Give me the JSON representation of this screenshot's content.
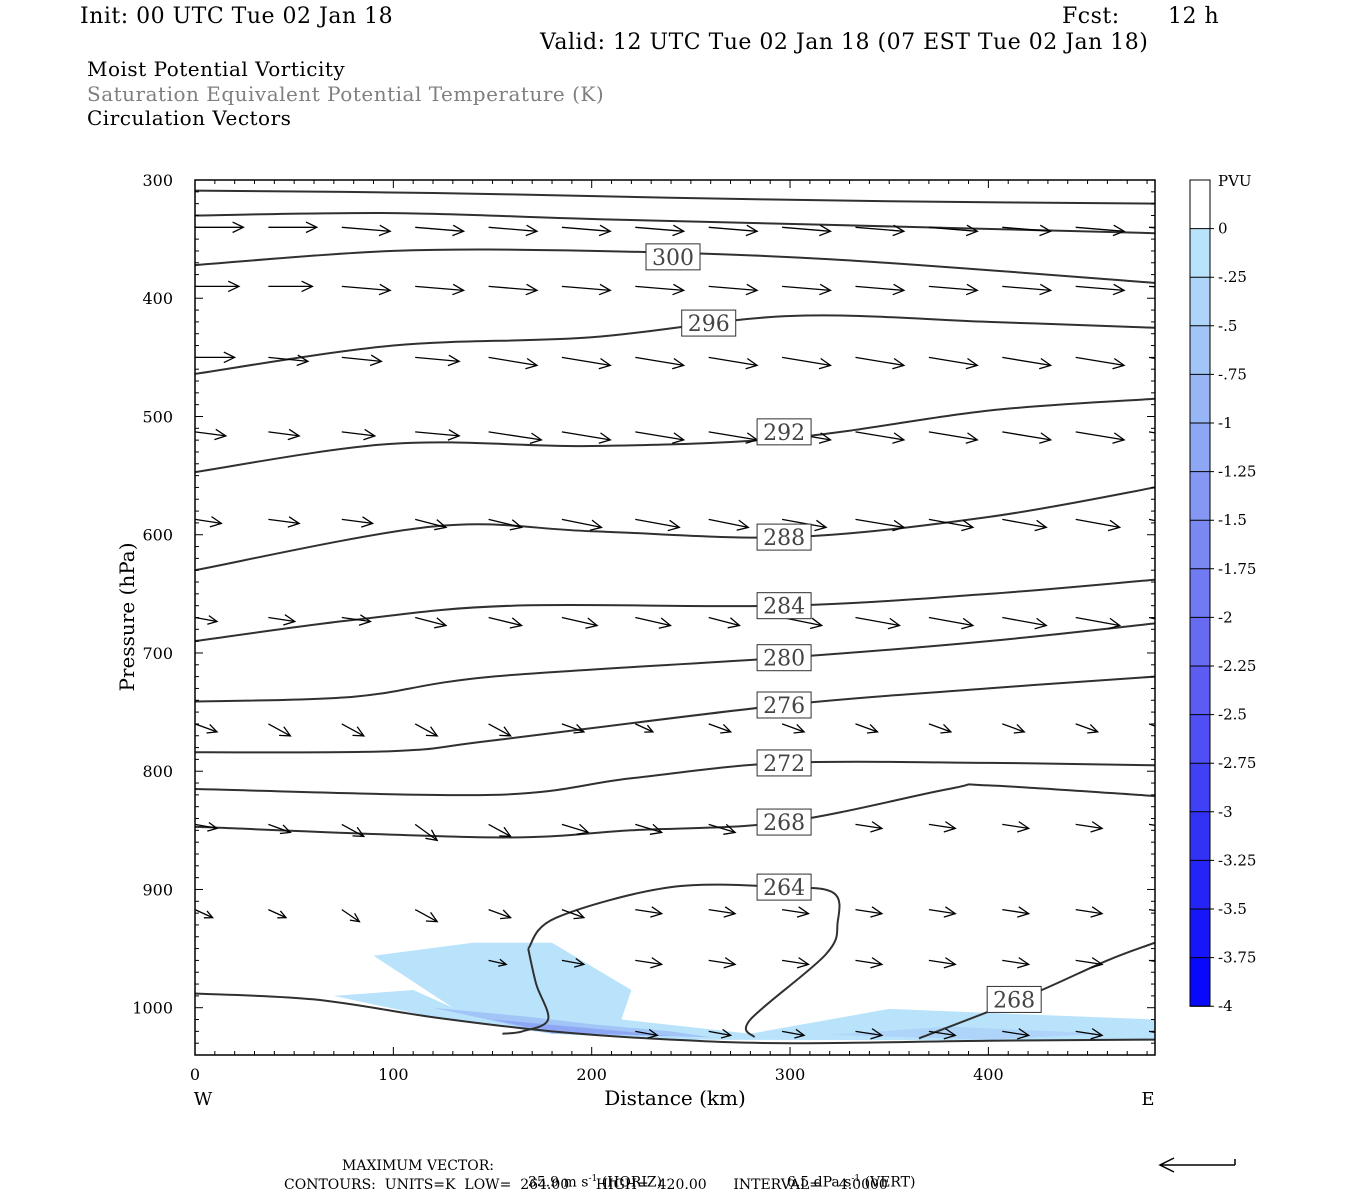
{
  "header": {
    "init": "Init: 00 UTC Tue 02 Jan 18",
    "fcst_label": "Fcst:",
    "fcst_value": "12 h",
    "valid": "Valid: 12 UTC Tue 02 Jan 18 (07 EST Tue 02 Jan 18)"
  },
  "titles": {
    "line1": "Moist Potential Vorticity",
    "line2": "Saturation Equivalent Potential Temperature (K)",
    "line3": "Circulation Vectors"
  },
  "footer": {
    "max_vector_label": "MAXIMUM VECTOR:",
    "horiz_value": "35.9 m s",
    "horiz_unit": "(HORIZ)",
    "vert_value": "6.5 dPa s",
    "vert_unit": "(VERT)",
    "exponent": "-1",
    "contours": "CONTOURS:  UNITS=K  LOW=  264.00      HIGH=  420.00      INTERVAL=    4.0000"
  },
  "colors": {
    "contour": "#303030",
    "arrow": "#000000",
    "axis": "#000000",
    "text_gray": "#7f7f7f"
  },
  "chart_data": {
    "type": "cross-section",
    "xlabel": "Distance (km)",
    "ylabel": "Pressure (hPa)",
    "xlim": [
      0,
      484
    ],
    "ylim": [
      300,
      1040
    ],
    "x_ticks": [
      "0",
      "100",
      "200",
      "300",
      "400"
    ],
    "x_tick_values": [
      0,
      100,
      200,
      300,
      400
    ],
    "y_ticks": [
      "300",
      "400",
      "500",
      "600",
      "700",
      "800",
      "900",
      "1000"
    ],
    "y_tick_values": [
      300,
      400,
      500,
      600,
      700,
      800,
      900,
      1000
    ],
    "x_end_labels": {
      "left": "W",
      "right": "E"
    },
    "colorbar": {
      "unit": "PVU",
      "labels": [
        "0",
        "-.25",
        "-.5",
        "-.75",
        "-1",
        "-1.25",
        "-1.5",
        "-1.75",
        "-2",
        "-2.25",
        "-2.5",
        "-2.75",
        "-3",
        "-3.25",
        "-3.5",
        "-3.75",
        "-4"
      ],
      "colors": [
        "#ffffff",
        "#b9e3fb",
        "#aed4f9",
        "#a2c5f7",
        "#98b6f5",
        "#8ea7f4",
        "#8498f3",
        "#7a89f2",
        "#707af2",
        "#666bf1",
        "#5c5cf2",
        "#4f4ff3",
        "#4040f4",
        "#3232f5",
        "#2424f7",
        "#1616f9",
        "#0808fc"
      ]
    },
    "contour_interval": 4,
    "contours": [
      {
        "value": 304,
        "points": [
          [
            0,
            309
          ],
          [
            120,
            311
          ],
          [
            240,
            315
          ],
          [
            350,
            318
          ],
          [
            484,
            320
          ]
        ]
      },
      {
        "value": 302,
        "points": [
          [
            0,
            330
          ],
          [
            100,
            328
          ],
          [
            200,
            333
          ],
          [
            320,
            338
          ],
          [
            484,
            345
          ]
        ]
      },
      {
        "value": 300,
        "label": "300",
        "label_at": [
          241,
          365
        ],
        "points": [
          [
            0,
            372
          ],
          [
            100,
            360
          ],
          [
            200,
            360
          ],
          [
            320,
            367
          ],
          [
            484,
            387
          ]
        ]
      },
      {
        "value": 296,
        "label": "296",
        "label_at": [
          259,
          421
        ],
        "points": [
          [
            0,
            464
          ],
          [
            100,
            440
          ],
          [
            200,
            433
          ],
          [
            300,
            415
          ],
          [
            400,
            420
          ],
          [
            484,
            425
          ]
        ]
      },
      {
        "value": 292,
        "label": "292",
        "label_at": [
          297,
          513
        ],
        "points": [
          [
            0,
            547
          ],
          [
            100,
            523
          ],
          [
            200,
            525
          ],
          [
            300,
            518
          ],
          [
            400,
            495
          ],
          [
            484,
            485
          ]
        ]
      },
      {
        "value": 288,
        "label": "288",
        "label_at": [
          297,
          602
        ],
        "points": [
          [
            0,
            630
          ],
          [
            120,
            593
          ],
          [
            200,
            597
          ],
          [
            300,
            602
          ],
          [
            400,
            585
          ],
          [
            484,
            560
          ]
        ]
      },
      {
        "value": 284,
        "label": "284",
        "label_at": [
          297,
          660
        ],
        "points": [
          [
            0,
            690
          ],
          [
            80,
            672
          ],
          [
            160,
            660
          ],
          [
            297,
            660
          ],
          [
            400,
            650
          ],
          [
            484,
            638
          ]
        ]
      },
      {
        "value": 280,
        "label": "280",
        "label_at": [
          297,
          704
        ],
        "points": [
          [
            0,
            741
          ],
          [
            80,
            737
          ],
          [
            150,
            720
          ],
          [
            297,
            704
          ],
          [
            400,
            690
          ],
          [
            484,
            675
          ]
        ]
      },
      {
        "value": 276,
        "label": "276",
        "label_at": [
          297,
          744
        ],
        "points": [
          [
            0,
            784
          ],
          [
            100,
            783
          ],
          [
            150,
            774
          ],
          [
            297,
            744
          ],
          [
            400,
            730
          ],
          [
            484,
            720
          ]
        ]
      },
      {
        "value": 272,
        "label": "272",
        "label_at": [
          297,
          793
        ],
        "points": [
          [
            0,
            815
          ],
          [
            150,
            820
          ],
          [
            220,
            806
          ],
          [
            297,
            793
          ],
          [
            400,
            793
          ],
          [
            484,
            795
          ]
        ]
      },
      {
        "value": 268,
        "label": "268",
        "label_at": [
          297,
          843
        ],
        "points": [
          [
            0,
            847
          ],
          [
            150,
            856
          ],
          [
            220,
            850
          ],
          [
            297,
            843
          ],
          [
            380,
            815
          ],
          [
            400,
            812
          ],
          [
            484,
            821
          ]
        ]
      },
      {
        "value": 264,
        "label": "264",
        "label_at": [
          297,
          898
        ],
        "points": [
          [
            168,
            950
          ],
          [
            182,
            924
          ],
          [
            240,
            898
          ],
          [
            297,
            898
          ],
          [
            322,
            903
          ],
          [
            324,
            928
          ],
          [
            318,
            955
          ],
          [
            280,
            1010
          ],
          [
            282,
            1025
          ]
        ]
      },
      {
        "value": 264,
        "points": [
          [
            168,
            950
          ],
          [
            172,
            980
          ],
          [
            178,
            1010
          ],
          [
            165,
            1020
          ],
          [
            155,
            1022
          ]
        ]
      },
      {
        "value": 268,
        "label": "268",
        "label_at": [
          413,
          993
        ],
        "points": [
          [
            365,
            1026
          ],
          [
            420,
            990
          ],
          [
            460,
            960
          ],
          [
            484,
            945
          ]
        ]
      },
      {
        "value": 260,
        "points": [
          [
            0,
            988
          ],
          [
            60,
            993
          ],
          [
            120,
            1008
          ],
          [
            180,
            1020
          ],
          [
            240,
            1027
          ],
          [
            300,
            1030
          ],
          [
            400,
            1028
          ],
          [
            484,
            1027
          ]
        ]
      }
    ],
    "pv_regions": [
      {
        "level": "-.25",
        "points": [
          [
            90,
            956
          ],
          [
            140,
            945
          ],
          [
            180,
            945
          ],
          [
            220,
            985
          ],
          [
            215,
            1010
          ],
          [
            280,
            1022
          ],
          [
            350,
            1001
          ],
          [
            484,
            1010
          ],
          [
            484,
            1028
          ],
          [
            240,
            1027
          ],
          [
            180,
            1022
          ],
          [
            120,
            1008
          ],
          [
            70,
            990
          ],
          [
            110,
            985
          ],
          [
            130,
            1000
          ]
        ]
      },
      {
        "level": "-.75",
        "points": [
          [
            120,
            1000
          ],
          [
            170,
            1008
          ],
          [
            200,
            1014
          ],
          [
            240,
            1020
          ],
          [
            260,
            1025
          ],
          [
            180,
            1022
          ]
        ]
      },
      {
        "level": "-1.25",
        "points": [
          [
            150,
            1010
          ],
          [
            210,
            1019
          ],
          [
            240,
            1024
          ],
          [
            180,
            1021
          ]
        ]
      },
      {
        "level": "-.5",
        "points": [
          [
            320,
            1023
          ],
          [
            380,
            1016
          ],
          [
            460,
            1022
          ],
          [
            400,
            1027
          ]
        ]
      }
    ],
    "vectors": {
      "rows_hpa": [
        340,
        390,
        450,
        513,
        587,
        670,
        760,
        845,
        917,
        960,
        1020
      ],
      "x_positions_km": [
        0,
        37,
        74,
        111,
        148,
        185,
        222,
        259,
        296,
        333,
        370,
        407,
        444,
        481
      ],
      "u": [
        [
          22,
          22,
          22,
          22,
          22,
          22,
          22,
          22,
          22,
          22,
          22,
          22,
          22,
          22
        ],
        [
          20,
          20,
          22,
          22,
          22,
          22,
          22,
          22,
          22,
          22,
          22,
          22,
          22,
          22
        ],
        [
          18,
          18,
          18,
          20,
          22,
          22,
          22,
          22,
          22,
          22,
          22,
          22,
          22,
          20
        ],
        [
          14,
          14,
          15,
          20,
          24,
          22,
          22,
          22,
          22,
          22,
          22,
          22,
          22,
          22
        ],
        [
          12,
          14,
          14,
          14,
          15,
          18,
          20,
          18,
          20,
          22,
          20,
          20,
          20,
          18
        ],
        [
          10,
          12,
          13,
          14,
          15,
          16,
          16,
          14,
          18,
          20,
          20,
          20,
          20,
          16
        ],
        [
          10,
          10,
          10,
          10,
          10,
          10,
          8,
          10,
          10,
          10,
          10,
          10,
          10,
          10
        ],
        [
          10,
          10,
          10,
          10,
          10,
          12,
          12,
          12,
          12,
          12,
          12,
          12,
          12,
          12
        ],
        [
          8,
          8,
          8,
          10,
          10,
          10,
          12,
          12,
          12,
          12,
          12,
          12,
          12,
          12
        ],
        [
          0,
          0,
          0,
          0,
          8,
          10,
          12,
          12,
          12,
          12,
          12,
          12,
          12,
          12
        ],
        [
          0,
          0,
          0,
          0,
          0,
          0,
          10,
          10,
          10,
          12,
          12,
          12,
          12,
          12
        ]
      ],
      "w": [
        [
          0,
          0,
          -1,
          -1,
          -1,
          -1,
          -1,
          -1,
          -1,
          -1,
          -1,
          -1,
          -1,
          -1
        ],
        [
          0,
          0,
          -1,
          -1,
          -1,
          -1,
          -1,
          -1,
          -1,
          -1,
          -1,
          -1,
          -1,
          -1
        ],
        [
          0,
          -1,
          -1,
          -1,
          -2,
          -2,
          -2,
          -2,
          -2,
          -2,
          -2,
          -2,
          -2,
          -2
        ],
        [
          -1,
          -1,
          -1,
          -1,
          -2,
          -2,
          -2,
          -2,
          -2,
          -2,
          -2,
          -2,
          -2,
          -2
        ],
        [
          -1,
          -1,
          -1,
          -2,
          -2,
          -2,
          -2,
          -2,
          -2,
          -2,
          -2,
          -2,
          -2,
          -2
        ],
        [
          -1,
          -1,
          -1,
          -2,
          -2,
          -2,
          -2,
          -2,
          -2,
          -2,
          -2,
          -2,
          -2,
          -2
        ],
        [
          -2,
          -3,
          -3,
          -3,
          -3,
          -2,
          -2,
          -2,
          -2,
          -2,
          -2,
          -2,
          -2,
          -2
        ],
        [
          -1,
          -2,
          -3,
          -4,
          -3,
          -2,
          -2,
          -2,
          -2,
          -1,
          -1,
          -1,
          -1,
          -1
        ],
        [
          -2,
          -2,
          -3,
          -3,
          -2,
          -2,
          -1,
          -1,
          -1,
          -1,
          -1,
          -1,
          -1,
          -1
        ],
        [
          0,
          0,
          0,
          0,
          -1,
          -1,
          -1,
          -1,
          -1,
          -1,
          -1,
          -1,
          -1,
          -1
        ],
        [
          0,
          0,
          0,
          0,
          0,
          0,
          -1,
          -1,
          -1,
          -1,
          -1,
          -1,
          -1,
          -1
        ]
      ]
    }
  }
}
